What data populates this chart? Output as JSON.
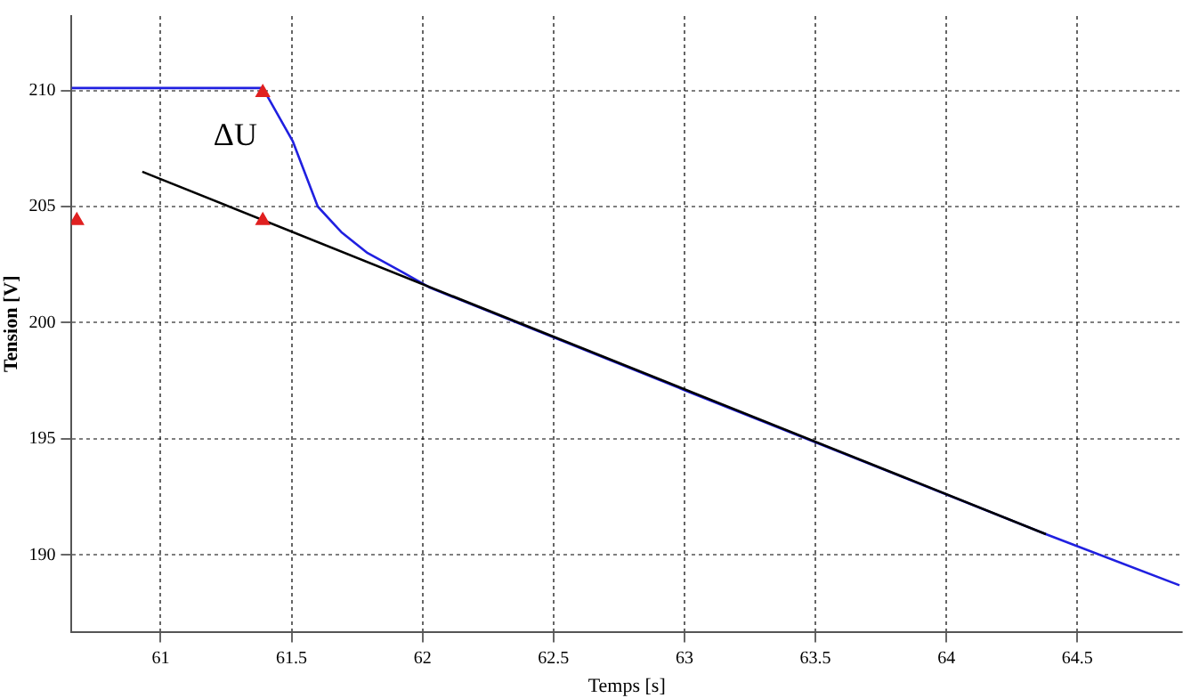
{
  "chart_data": {
    "type": "line",
    "xlabel": "Temps [s]",
    "ylabel": "Tension [V]",
    "xlim": [
      60.66,
      64.9
    ],
    "ylim": [
      186.7,
      213.2
    ],
    "xticks": [
      61,
      61.5,
      62,
      62.5,
      63,
      63.5,
      64,
      64.5
    ],
    "yticks": [
      190,
      195,
      200,
      205,
      210
    ],
    "grid": true,
    "legend": false,
    "marker": "none",
    "line_style": "solid",
    "annotations": [
      "ΔU"
    ],
    "series": [
      {
        "color": "#2020e0",
        "x": [
          60.66,
          61.39,
          61.505,
          61.6,
          61.69,
          61.79,
          61.92,
          62.03,
          63,
          64.38,
          64.89
        ],
        "values": [
          210.1,
          210.1,
          207.8,
          205,
          203.9,
          203,
          202.2,
          201.5,
          197.1,
          190.9,
          188.7
        ]
      },
      {
        "color": "#000000",
        "x": [
          60.93,
          64.38
        ],
        "values": [
          206.5,
          190.9
        ]
      },
      {
        "type": "scatter",
        "marker": "triangle",
        "color": "#e02020",
        "x": [
          61.39,
          61.39,
          60.68
        ],
        "values": [
          209.9,
          204.4,
          204.4
        ]
      }
    ]
  }
}
